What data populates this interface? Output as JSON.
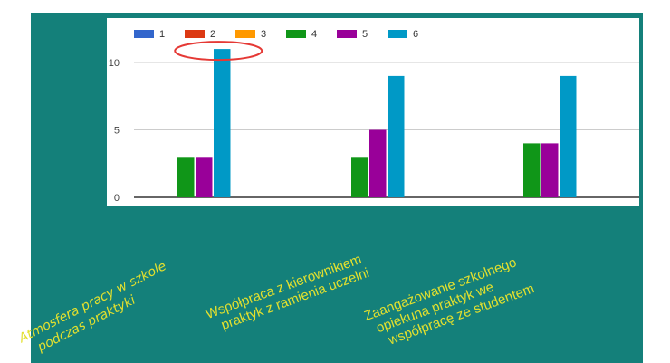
{
  "slide": {
    "background": "#14807a",
    "label_color": "#e3e02e"
  },
  "chart_data": {
    "type": "bar",
    "categories": [
      [
        "Atmosfera pracy w szkole",
        "podczas praktyki"
      ],
      [
        "Współpraca z kierownikiem",
        "praktyk z ramienia uczelni"
      ],
      [
        "Zaangażowanie szkolnego",
        "opiekuna praktyk we",
        "współpracę ze studentem"
      ]
    ],
    "series": [
      {
        "name": "1",
        "color": "#3366cc",
        "values": [
          0,
          0,
          0
        ]
      },
      {
        "name": "2",
        "color": "#dc3912",
        "values": [
          0,
          0,
          0
        ]
      },
      {
        "name": "3",
        "color": "#ff9900",
        "values": [
          0,
          0,
          0
        ]
      },
      {
        "name": "4",
        "color": "#109618",
        "values": [
          3,
          3,
          4
        ]
      },
      {
        "name": "5",
        "color": "#990099",
        "values": [
          3,
          5,
          4
        ]
      },
      {
        "name": "6",
        "color": "#0099c6",
        "values": [
          11,
          9,
          9
        ]
      }
    ],
    "yticks": [
      0,
      5,
      10
    ],
    "ylim": [
      0,
      11
    ],
    "grid": true,
    "legend_position": "top-left",
    "annotation": {
      "type": "ellipse",
      "color": "#e53935",
      "target_category": 0,
      "target_series": "6"
    }
  }
}
